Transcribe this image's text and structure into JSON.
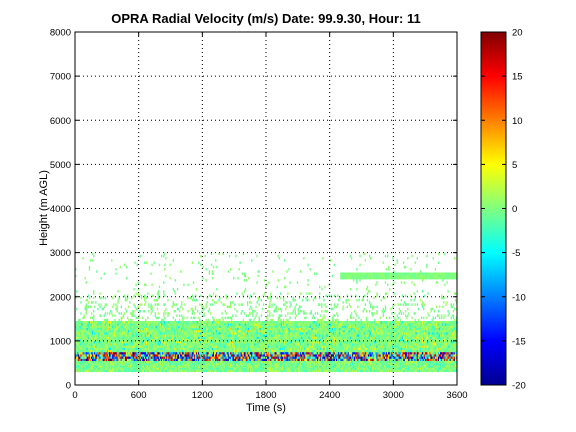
{
  "chart_data": {
    "type": "heatmap",
    "title": "OPRA Radial Velocity (m/s)  Date: 99.9.30, Hour: 11",
    "xlabel": "Time (s)",
    "ylabel": "Height (m AGL)",
    "xlim": [
      0,
      3600
    ],
    "ylim": [
      0,
      8000
    ],
    "xticks": [
      "0",
      "600",
      "1200",
      "1800",
      "2400",
      "3000",
      "3600"
    ],
    "yticks": [
      "0",
      "1000",
      "2000",
      "3000",
      "4000",
      "5000",
      "6000",
      "7000",
      "8000"
    ],
    "grid": true,
    "colorbar": {
      "range": [
        -20,
        20
      ],
      "ticks": [
        "-20",
        "-15",
        "-10",
        "-5",
        "0",
        "5",
        "10",
        "15",
        "20"
      ],
      "colormap": "jet"
    },
    "data_summary": {
      "valid_height_range_m": [
        300,
        3000
      ],
      "dominant_velocity_ms": 0,
      "noisy_band_m": [
        550,
        750
      ],
      "continuous_layer_m": [
        2400,
        2500
      ],
      "continuous_layer_time_s": [
        2500,
        3600
      ]
    }
  }
}
